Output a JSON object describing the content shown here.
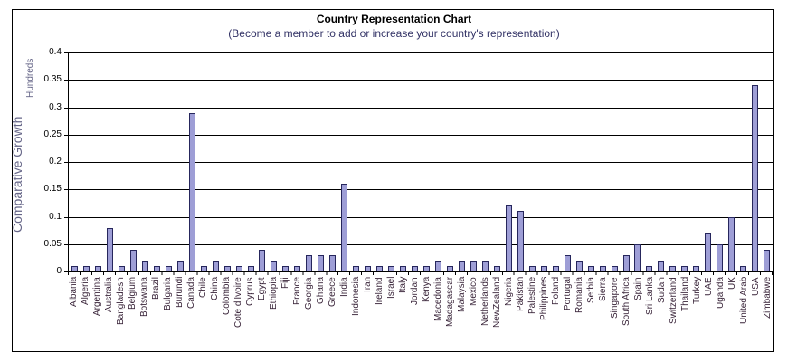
{
  "chart_data": {
    "type": "bar",
    "title": "Country Representation Chart",
    "subtitle": "(Become a member to add or increase your country's representation)",
    "ylabel": "Comparative Growth",
    "y_units_label": "Hundreds",
    "xlabel": "",
    "ylim": [
      0,
      0.4
    ],
    "ytick_step": 0.05,
    "yticks": [
      "0",
      "0.05",
      "0.1",
      "0.15",
      "0.2",
      "0.25",
      "0.3",
      "0.35",
      "0.4"
    ],
    "grid": true,
    "legend": false,
    "categories": [
      "Albania",
      "Algeria",
      "Argentina",
      "Australia",
      "Bangladesh",
      "Belgium",
      "Botswana",
      "Brazil",
      "Bulgaria",
      "Burundi",
      "Canada",
      "Chile",
      "China",
      "Colombia",
      "Cote d'Ivoire",
      "Cyprus",
      "Egypt",
      "Ethiopia",
      "Fiji",
      "France",
      "Georgia",
      "Ghana",
      "Greece",
      "India",
      "Indonesia",
      "Iran",
      "Ireland",
      "Israel",
      "Italy",
      "Jordan",
      "Kenya",
      "Macedonia",
      "Madagascar",
      "Malaysia",
      "Mexico",
      "Netherlands",
      "NewZealand",
      "Nigeria",
      "Pakistan",
      "Palestine",
      "Philippines",
      "Poland",
      "Portugal",
      "Romania",
      "Serbia",
      "Sierra",
      "Singapore",
      "South Africa",
      "Spain",
      "Sri Lanka",
      "Sudan",
      "Switzerland",
      "Thailand",
      "Turkey",
      "UAE",
      "Uganda",
      "UK",
      "United Arab",
      "USA",
      "Zimbabwe"
    ],
    "values": [
      0.01,
      0.01,
      0.01,
      0.08,
      0.01,
      0.04,
      0.02,
      0.01,
      0.01,
      0.02,
      0.29,
      0.01,
      0.02,
      0.01,
      0.01,
      0.01,
      0.04,
      0.02,
      0.01,
      0.01,
      0.03,
      0.03,
      0.03,
      0.16,
      0.01,
      0.01,
      0.01,
      0.01,
      0.01,
      0.01,
      0.01,
      0.02,
      0.01,
      0.02,
      0.02,
      0.02,
      0.01,
      0.12,
      0.11,
      0.01,
      0.01,
      0.01,
      0.03,
      0.02,
      0.01,
      0.01,
      0.01,
      0.03,
      0.05,
      0.01,
      0.02,
      0.01,
      0.01,
      0.01,
      0.07,
      0.05,
      0.1,
      0.01,
      0.34,
      0.04
    ],
    "colors": {
      "bar_fill": "#9E9ED6",
      "bar_border": "#26265C",
      "subtitle_text": "#333366",
      "axis_title_text": "#666688",
      "category_label_text": "#3A253A",
      "gridline": "#000000"
    }
  }
}
